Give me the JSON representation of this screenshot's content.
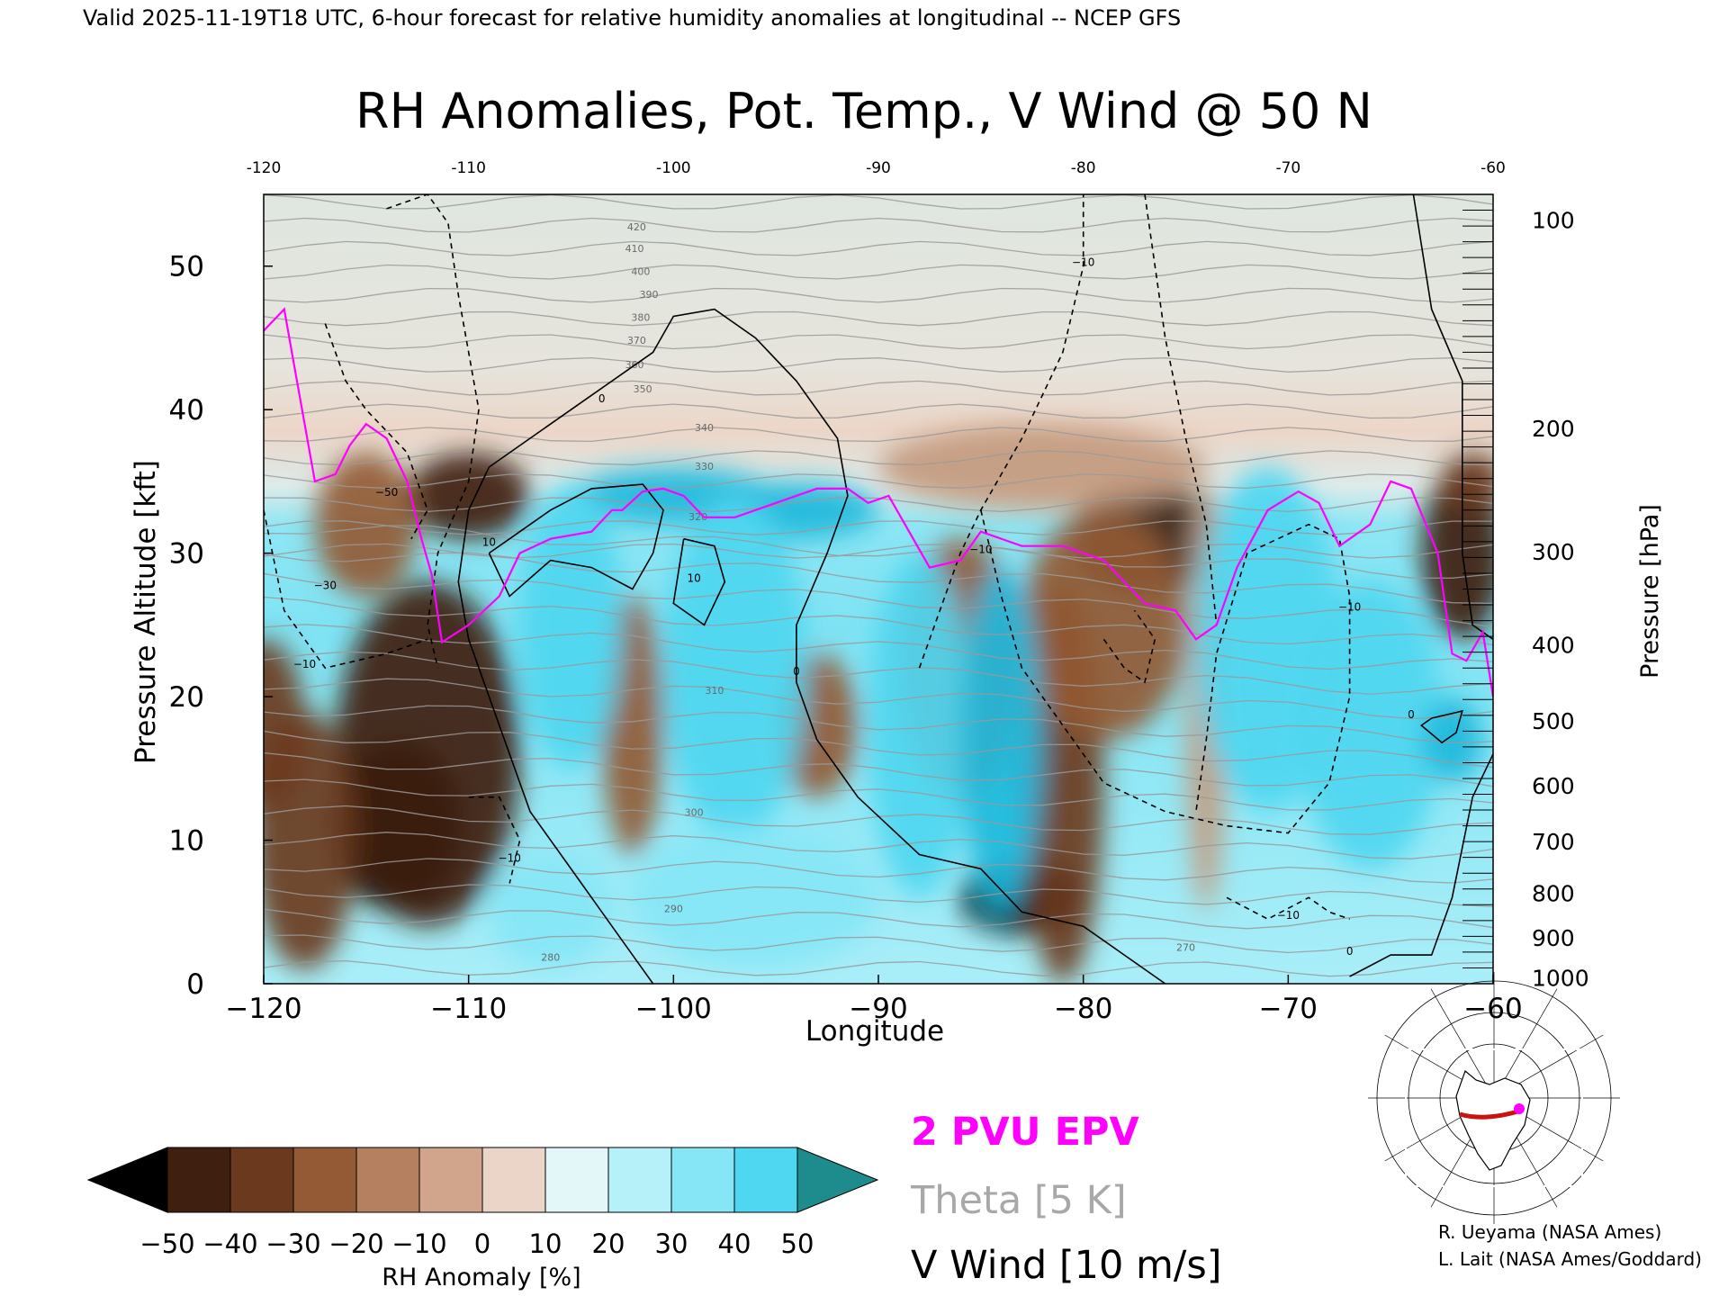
{
  "header": "Valid 2025-11-19T18 UTC, 6-hour forecast for relative humidity anomalies at longitudinal -- NCEP GFS",
  "chart_data": {
    "type": "heatmap",
    "title": "RH Anomalies, Pot. Temp., V Wind @ 50 N",
    "xlabel": "Longitude",
    "ylabel_left": "Pressure Altitude [kft]",
    "ylabel_right": "Pressure [hPa]",
    "xlim": [
      -120,
      -60
    ],
    "ylim": [
      0,
      55
    ],
    "x_ticks": [
      -120,
      -110,
      -100,
      -90,
      -80,
      -70,
      -60
    ],
    "x_tick_labels": [
      "−120",
      "−110",
      "−100",
      "−90",
      "−80",
      "−70",
      "−60"
    ],
    "x_top_ticks": [
      -120,
      -110,
      -100,
      -90,
      -80,
      -70,
      -60
    ],
    "x_top_tick_labels": [
      "-120",
      "-110",
      "-100",
      "-90",
      "-80",
      "-70",
      "-60"
    ],
    "y_ticks": [
      0,
      10,
      20,
      30,
      40,
      50
    ],
    "y_tick_labels": [
      "0",
      "10",
      "20",
      "30",
      "40",
      "50"
    ],
    "pressure_ticks": [
      {
        "hpa": 100,
        "kft": 53.2,
        "label": "100"
      },
      {
        "hpa": 200,
        "kft": 38.7,
        "label": "200"
      },
      {
        "hpa": 300,
        "kft": 30.1,
        "label": "300"
      },
      {
        "hpa": 400,
        "kft": 23.6,
        "label": "400"
      },
      {
        "hpa": 500,
        "kft": 18.3,
        "label": "500"
      },
      {
        "hpa": 600,
        "kft": 13.8,
        "label": "600"
      },
      {
        "hpa": 700,
        "kft": 9.9,
        "label": "700"
      },
      {
        "hpa": 800,
        "kft": 6.3,
        "label": "800"
      },
      {
        "hpa": 900,
        "kft": 3.2,
        "label": "900"
      },
      {
        "hpa": 1000,
        "kft": 0.4,
        "label": "1000"
      }
    ],
    "colorbar": {
      "label": "RH Anomaly [%]",
      "tick_values": [
        "−50",
        "−40",
        "−30",
        "−20",
        "−10",
        "0",
        "10",
        "20",
        "30",
        "40",
        "50"
      ],
      "colors": [
        "#000000",
        "#3f1f0f",
        "#6b3a1e",
        "#935a35",
        "#b58060",
        "#d0a58c",
        "#ebd5c8",
        "#e3f7f8",
        "#b6f0f8",
        "#86e6f6",
        "#4fd6f0",
        "#21b9db",
        "#0b89ac",
        "#1e8c8c"
      ]
    },
    "rh_anomaly_blobs": [
      {
        "x": -113.5,
        "y": 11,
        "rx": 3.2,
        "ry": 6,
        "v": -50
      },
      {
        "x": -112,
        "y": 16,
        "rx": 4.5,
        "ry": 12,
        "v": -35
      },
      {
        "x": -118,
        "y": 10,
        "rx": 2.5,
        "ry": 9,
        "v": -30
      },
      {
        "x": -120,
        "y": 18,
        "rx": 2,
        "ry": 6,
        "v": -30
      },
      {
        "x": -110,
        "y": 34,
        "rx": 3,
        "ry": 3,
        "v": -35
      },
      {
        "x": -115,
        "y": 32,
        "rx": 2.5,
        "ry": 5,
        "v": -20
      },
      {
        "x": -83,
        "y": 6,
        "rx": 3,
        "ry": 2.5,
        "v": -45
      },
      {
        "x": -81,
        "y": 14,
        "rx": 2,
        "ry": 14,
        "v": -30
      },
      {
        "x": -77,
        "y": 31,
        "rx": 3.5,
        "ry": 4,
        "v": -35
      },
      {
        "x": -79,
        "y": 25,
        "rx": 4,
        "ry": 8,
        "v": -20
      },
      {
        "x": -86,
        "y": 22,
        "rx": 3,
        "ry": 9,
        "v": -15
      },
      {
        "x": -93,
        "y": 18,
        "rx": 2,
        "ry": 5,
        "v": -15
      },
      {
        "x": -102,
        "y": 18,
        "rx": 1.5,
        "ry": 9,
        "v": -15
      },
      {
        "x": -61.5,
        "y": 30,
        "rx": 2,
        "ry": 6,
        "v": -40
      },
      {
        "x": -61,
        "y": 35,
        "rx": 1.5,
        "ry": 2,
        "v": -30
      },
      {
        "x": -74,
        "y": 20,
        "rx": 1,
        "ry": 15,
        "v": -10
      },
      {
        "x": -82,
        "y": 36,
        "rx": 8,
        "ry": 3,
        "v": -10
      },
      {
        "x": -100,
        "y": 34,
        "rx": 5,
        "ry": 2,
        "v": 45
      },
      {
        "x": -94,
        "y": 33,
        "rx": 4,
        "ry": 2,
        "v": 40
      },
      {
        "x": -105,
        "y": 25,
        "rx": 2.5,
        "ry": 10,
        "v": 30
      },
      {
        "x": -97,
        "y": 22,
        "rx": 3.5,
        "ry": 12,
        "v": 30
      },
      {
        "x": -88,
        "y": 18,
        "rx": 2.5,
        "ry": 12,
        "v": 35
      },
      {
        "x": -84,
        "y": 17,
        "rx": 2,
        "ry": 12,
        "v": 40
      },
      {
        "x": -71,
        "y": 24,
        "rx": 3.5,
        "ry": 12,
        "v": 30
      },
      {
        "x": -66,
        "y": 18,
        "rx": 3.5,
        "ry": 10,
        "v": 35
      },
      {
        "x": -62,
        "y": 17,
        "rx": 1.5,
        "ry": 3,
        "v": 45
      },
      {
        "x": -96,
        "y": 6,
        "rx": 6,
        "ry": 5,
        "v": 20
      },
      {
        "x": -106,
        "y": 5,
        "rx": 3,
        "ry": 4,
        "v": 20
      }
    ],
    "series": [
      {
        "name": "2 PVU EPV",
        "color": "#ff00ff",
        "points": [
          [
            -120,
            45.5
          ],
          [
            -119,
            47
          ],
          [
            -118.5,
            43
          ],
          [
            -118,
            39
          ],
          [
            -117.5,
            35
          ],
          [
            -116.5,
            35.5
          ],
          [
            -115.8,
            37.5
          ],
          [
            -115,
            39
          ],
          [
            -114,
            38
          ],
          [
            -113,
            35
          ],
          [
            -112.3,
            31
          ],
          [
            -111.8,
            28.5
          ],
          [
            -111.3,
            23.8
          ],
          [
            -110,
            25
          ],
          [
            -108.5,
            27
          ],
          [
            -108,
            28.5
          ],
          [
            -107.5,
            30
          ],
          [
            -106,
            31
          ],
          [
            -104,
            31.5
          ],
          [
            -103,
            33
          ],
          [
            -102.5,
            33
          ],
          [
            -101.5,
            34.3
          ],
          [
            -100.5,
            34.5
          ],
          [
            -99.5,
            34
          ],
          [
            -98.5,
            32.5
          ],
          [
            -97,
            32.5
          ],
          [
            -95,
            33.5
          ],
          [
            -93,
            34.5
          ],
          [
            -91.5,
            34.5
          ],
          [
            -90.5,
            33.5
          ],
          [
            -89.5,
            34
          ],
          [
            -88.5,
            31.5
          ],
          [
            -87.5,
            29
          ],
          [
            -86,
            29.5
          ],
          [
            -85,
            31.5
          ],
          [
            -83,
            30.5
          ],
          [
            -81,
            30.5
          ],
          [
            -79,
            29.5
          ],
          [
            -77,
            26.5
          ],
          [
            -75.5,
            26
          ],
          [
            -74.5,
            24
          ],
          [
            -73.5,
            25
          ],
          [
            -72.5,
            29
          ],
          [
            -71,
            33
          ],
          [
            -69.5,
            34.3
          ],
          [
            -68.5,
            33.5
          ],
          [
            -67.5,
            30.5
          ],
          [
            -66,
            32
          ],
          [
            -65,
            35
          ],
          [
            -64,
            34.5
          ],
          [
            -62.7,
            30
          ],
          [
            -62,
            23
          ],
          [
            -61.3,
            22.5
          ],
          [
            -60.5,
            24.5
          ],
          [
            -60,
            20
          ]
        ]
      }
    ],
    "legend": [
      "2 PVU EPV",
      "Theta [5 K]",
      "V Wind [10 m/s]"
    ],
    "theta_label_values": [
      "420",
      "410",
      "400",
      "390",
      "380",
      "370",
      "360",
      "350",
      "340",
      "330",
      "320",
      "310",
      "300",
      "290",
      "280",
      "270"
    ],
    "wind_contour_labels": [
      "0",
      "10",
      "−10",
      "−30",
      "−50"
    ],
    "credits": [
      "R. Ueyama (NASA Ames)",
      "L. Lait (NASA Ames/Goddard)"
    ],
    "map_inset": {
      "cross_section_latitude": 50,
      "line_color": "#cc1111",
      "marker_color": "#ff00ff"
    }
  },
  "colors": {
    "pv": "#ff00ff",
    "theta": "#a0a0a0",
    "wind": "#000000"
  }
}
